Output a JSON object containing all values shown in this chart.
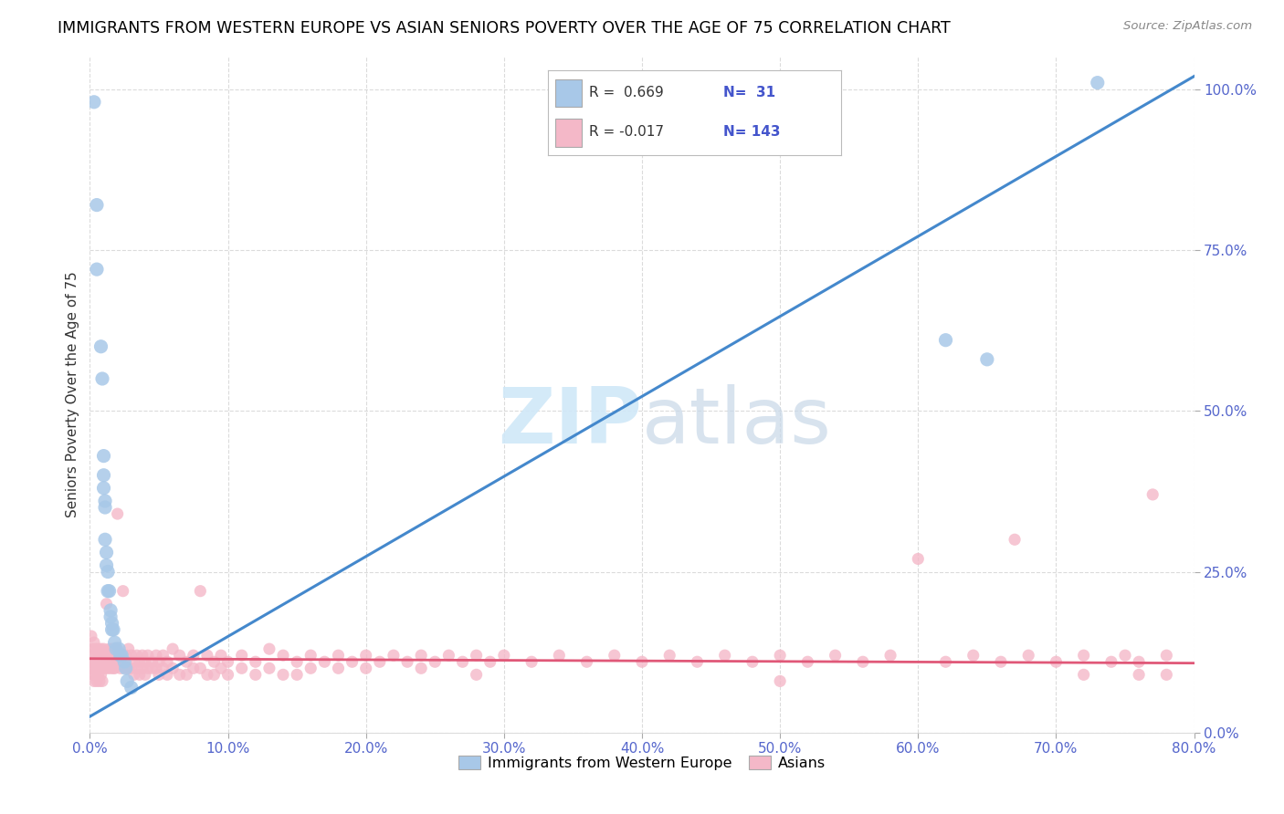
{
  "title": "IMMIGRANTS FROM WESTERN EUROPE VS ASIAN SENIORS POVERTY OVER THE AGE OF 75 CORRELATION CHART",
  "source": "Source: ZipAtlas.com",
  "ylabel": "Seniors Poverty Over the Age of 75",
  "xlim": [
    0.0,
    0.8
  ],
  "ylim": [
    0.0,
    1.05
  ],
  "watermark_zip": "ZIP",
  "watermark_atlas": "atlas",
  "blue_color": "#a8c8e8",
  "pink_color": "#f4b8c8",
  "blue_line_color": "#4488cc",
  "pink_line_color": "#e05878",
  "grid_color": "#cccccc",
  "blue_scatter": [
    [
      0.003,
      0.98
    ],
    [
      0.005,
      0.82
    ],
    [
      0.005,
      0.72
    ],
    [
      0.008,
      0.6
    ],
    [
      0.009,
      0.55
    ],
    [
      0.01,
      0.43
    ],
    [
      0.01,
      0.4
    ],
    [
      0.01,
      0.38
    ],
    [
      0.011,
      0.36
    ],
    [
      0.011,
      0.35
    ],
    [
      0.011,
      0.3
    ],
    [
      0.012,
      0.28
    ],
    [
      0.012,
      0.26
    ],
    [
      0.013,
      0.25
    ],
    [
      0.013,
      0.22
    ],
    [
      0.014,
      0.22
    ],
    [
      0.015,
      0.19
    ],
    [
      0.015,
      0.18
    ],
    [
      0.016,
      0.17
    ],
    [
      0.016,
      0.16
    ],
    [
      0.017,
      0.16
    ],
    [
      0.018,
      0.14
    ],
    [
      0.019,
      0.13
    ],
    [
      0.021,
      0.13
    ],
    [
      0.022,
      0.12
    ],
    [
      0.023,
      0.12
    ],
    [
      0.025,
      0.11
    ],
    [
      0.026,
      0.1
    ],
    [
      0.027,
      0.08
    ],
    [
      0.03,
      0.07
    ],
    [
      0.65,
      0.58
    ],
    [
      0.73,
      1.01
    ],
    [
      0.62,
      0.61
    ]
  ],
  "pink_scatter": [
    [
      0.001,
      0.15
    ],
    [
      0.001,
      0.12
    ],
    [
      0.001,
      0.1
    ],
    [
      0.002,
      0.13
    ],
    [
      0.002,
      0.11
    ],
    [
      0.002,
      0.09
    ],
    [
      0.003,
      0.14
    ],
    [
      0.003,
      0.1
    ],
    [
      0.003,
      0.08
    ],
    [
      0.004,
      0.13
    ],
    [
      0.004,
      0.11
    ],
    [
      0.004,
      0.09
    ],
    [
      0.005,
      0.12
    ],
    [
      0.005,
      0.1
    ],
    [
      0.005,
      0.08
    ],
    [
      0.006,
      0.13
    ],
    [
      0.006,
      0.11
    ],
    [
      0.006,
      0.09
    ],
    [
      0.007,
      0.12
    ],
    [
      0.007,
      0.1
    ],
    [
      0.007,
      0.08
    ],
    [
      0.008,
      0.13
    ],
    [
      0.008,
      0.11
    ],
    [
      0.008,
      0.09
    ],
    [
      0.009,
      0.12
    ],
    [
      0.009,
      0.1
    ],
    [
      0.009,
      0.08
    ],
    [
      0.01,
      0.13
    ],
    [
      0.01,
      0.11
    ],
    [
      0.011,
      0.12
    ],
    [
      0.011,
      0.1
    ],
    [
      0.012,
      0.2
    ],
    [
      0.012,
      0.11
    ],
    [
      0.013,
      0.12
    ],
    [
      0.013,
      0.1
    ],
    [
      0.014,
      0.13
    ],
    [
      0.014,
      0.11
    ],
    [
      0.015,
      0.12
    ],
    [
      0.015,
      0.1
    ],
    [
      0.016,
      0.13
    ],
    [
      0.016,
      0.11
    ],
    [
      0.017,
      0.12
    ],
    [
      0.017,
      0.1
    ],
    [
      0.018,
      0.12
    ],
    [
      0.018,
      0.1
    ],
    [
      0.019,
      0.13
    ],
    [
      0.019,
      0.11
    ],
    [
      0.02,
      0.34
    ],
    [
      0.02,
      0.12
    ],
    [
      0.022,
      0.12
    ],
    [
      0.022,
      0.1
    ],
    [
      0.024,
      0.22
    ],
    [
      0.024,
      0.11
    ],
    [
      0.026,
      0.12
    ],
    [
      0.026,
      0.1
    ],
    [
      0.028,
      0.13
    ],
    [
      0.028,
      0.1
    ],
    [
      0.03,
      0.12
    ],
    [
      0.03,
      0.1
    ],
    [
      0.032,
      0.11
    ],
    [
      0.032,
      0.09
    ],
    [
      0.034,
      0.12
    ],
    [
      0.034,
      0.1
    ],
    [
      0.036,
      0.11
    ],
    [
      0.036,
      0.09
    ],
    [
      0.038,
      0.12
    ],
    [
      0.038,
      0.1
    ],
    [
      0.04,
      0.11
    ],
    [
      0.04,
      0.09
    ],
    [
      0.042,
      0.12
    ],
    [
      0.042,
      0.1
    ],
    [
      0.045,
      0.11
    ],
    [
      0.045,
      0.1
    ],
    [
      0.048,
      0.12
    ],
    [
      0.048,
      0.1
    ],
    [
      0.05,
      0.11
    ],
    [
      0.05,
      0.09
    ],
    [
      0.053,
      0.12
    ],
    [
      0.053,
      0.1
    ],
    [
      0.056,
      0.11
    ],
    [
      0.056,
      0.09
    ],
    [
      0.06,
      0.13
    ],
    [
      0.06,
      0.1
    ],
    [
      0.065,
      0.12
    ],
    [
      0.065,
      0.09
    ],
    [
      0.07,
      0.11
    ],
    [
      0.07,
      0.09
    ],
    [
      0.075,
      0.12
    ],
    [
      0.075,
      0.1
    ],
    [
      0.08,
      0.22
    ],
    [
      0.08,
      0.1
    ],
    [
      0.085,
      0.12
    ],
    [
      0.085,
      0.09
    ],
    [
      0.09,
      0.11
    ],
    [
      0.09,
      0.09
    ],
    [
      0.095,
      0.12
    ],
    [
      0.095,
      0.1
    ],
    [
      0.1,
      0.11
    ],
    [
      0.1,
      0.09
    ],
    [
      0.11,
      0.12
    ],
    [
      0.11,
      0.1
    ],
    [
      0.12,
      0.11
    ],
    [
      0.12,
      0.09
    ],
    [
      0.13,
      0.13
    ],
    [
      0.13,
      0.1
    ],
    [
      0.14,
      0.12
    ],
    [
      0.14,
      0.09
    ],
    [
      0.15,
      0.11
    ],
    [
      0.15,
      0.09
    ],
    [
      0.16,
      0.12
    ],
    [
      0.16,
      0.1
    ],
    [
      0.17,
      0.11
    ],
    [
      0.18,
      0.12
    ],
    [
      0.18,
      0.1
    ],
    [
      0.19,
      0.11
    ],
    [
      0.2,
      0.12
    ],
    [
      0.2,
      0.1
    ],
    [
      0.21,
      0.11
    ],
    [
      0.22,
      0.12
    ],
    [
      0.23,
      0.11
    ],
    [
      0.24,
      0.12
    ],
    [
      0.24,
      0.1
    ],
    [
      0.25,
      0.11
    ],
    [
      0.26,
      0.12
    ],
    [
      0.27,
      0.11
    ],
    [
      0.28,
      0.12
    ],
    [
      0.28,
      0.09
    ],
    [
      0.29,
      0.11
    ],
    [
      0.3,
      0.12
    ],
    [
      0.32,
      0.11
    ],
    [
      0.34,
      0.12
    ],
    [
      0.36,
      0.11
    ],
    [
      0.38,
      0.12
    ],
    [
      0.4,
      0.11
    ],
    [
      0.42,
      0.12
    ],
    [
      0.44,
      0.11
    ],
    [
      0.46,
      0.12
    ],
    [
      0.48,
      0.11
    ],
    [
      0.5,
      0.12
    ],
    [
      0.5,
      0.08
    ],
    [
      0.52,
      0.11
    ],
    [
      0.54,
      0.12
    ],
    [
      0.56,
      0.11
    ],
    [
      0.58,
      0.12
    ],
    [
      0.6,
      0.27
    ],
    [
      0.62,
      0.11
    ],
    [
      0.64,
      0.12
    ],
    [
      0.66,
      0.11
    ],
    [
      0.67,
      0.3
    ],
    [
      0.68,
      0.12
    ],
    [
      0.7,
      0.11
    ],
    [
      0.72,
      0.12
    ],
    [
      0.72,
      0.09
    ],
    [
      0.74,
      0.11
    ],
    [
      0.75,
      0.12
    ],
    [
      0.76,
      0.11
    ],
    [
      0.76,
      0.09
    ],
    [
      0.77,
      0.37
    ],
    [
      0.78,
      0.12
    ],
    [
      0.78,
      0.09
    ]
  ],
  "blue_line_x": [
    0.0,
    0.8
  ],
  "blue_line_y": [
    0.025,
    1.02
  ],
  "pink_line_x": [
    0.0,
    0.8
  ],
  "pink_line_y": [
    0.115,
    0.108
  ]
}
